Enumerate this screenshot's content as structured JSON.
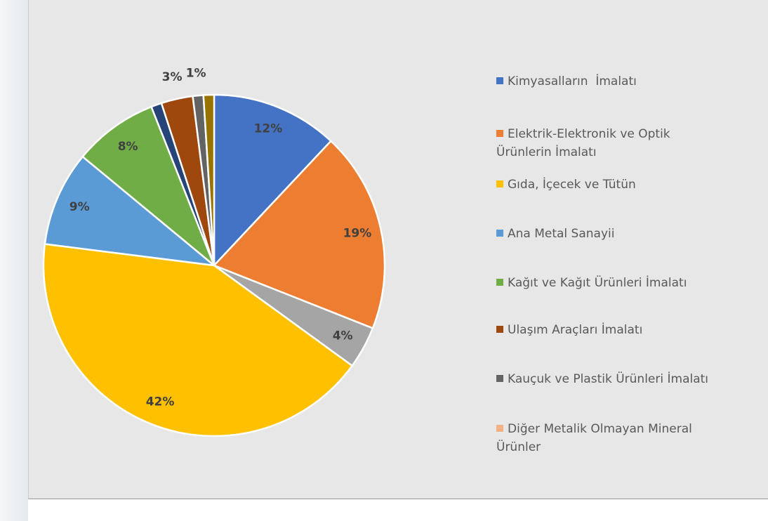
{
  "chart_data": {
    "type": "pie",
    "values": [
      12,
      19,
      4,
      42,
      9,
      8,
      1,
      3,
      1,
      1
    ],
    "value_labels": [
      "12%",
      "19%",
      "4%",
      "42%",
      "9%",
      "8%",
      null,
      "3%",
      "1%",
      null
    ],
    "colors": [
      "#4472c4",
      "#ed7d31",
      "#a5a5a5",
      "#ffc000",
      "#5b9bd5",
      "#70ad47",
      "#264478",
      "#9e480e",
      "#636363",
      "#997300"
    ],
    "legend": [
      {
        "name": "Kimyasalların  İmalatı",
        "color": "#4472c4"
      },
      {
        "name": "Elektrik-Elektronik ve Optik Ürünlerin İmalatı",
        "color": "#ed7d31"
      },
      {
        "name": "Gıda, İçecek ve Tütün",
        "color": "#ffc000"
      },
      {
        "name": "Ana Metal Sanayii",
        "color": "#5b9bd5"
      },
      {
        "name": "Kağıt ve Kağıt Ürünleri İmalatı",
        "color": "#70ad47"
      },
      {
        "name": "Ulaşım Araçları İmalatı",
        "color": "#9e480e"
      },
      {
        "name": "Kauçuk ve Plastik Ürünleri İmalatı",
        "color": "#636363"
      },
      {
        "name": "Diğer Metalik Olmayan Mineral Ürünler",
        "color": "#f4b183"
      }
    ]
  }
}
